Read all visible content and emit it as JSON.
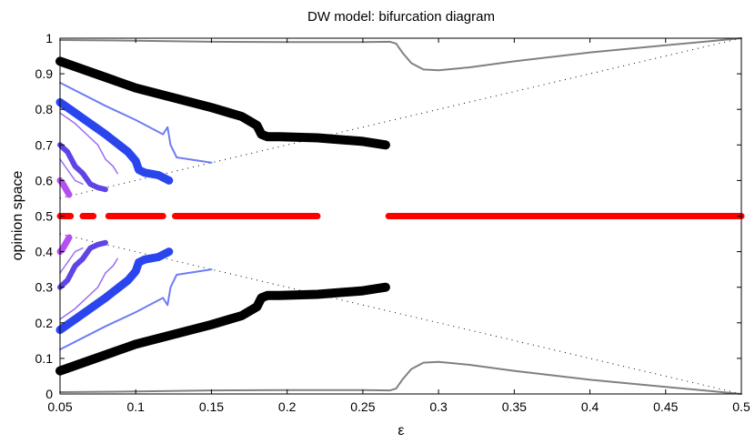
{
  "chart_data": {
    "type": "line",
    "title": "DW model: bifurcation diagram",
    "xlabel": "ε",
    "ylabel": "opinion space",
    "xlim": [
      0.05,
      0.5
    ],
    "ylim": [
      0,
      1
    ],
    "x_ticks": [
      "0.05",
      "0.1",
      "0.15",
      "0.2",
      "0.25",
      "0.3",
      "0.35",
      "0.4",
      "0.45",
      "0.5"
    ],
    "y_ticks": [
      "0",
      "0.1",
      "0.2",
      "0.3",
      "0.4",
      "0.5",
      "0.6",
      "0.7",
      "0.8",
      "0.9",
      "1"
    ],
    "grid": false,
    "series": [
      {
        "name": "boundary-upper",
        "color": "#000000",
        "style": "dotted",
        "width": 1,
        "x": [
          0.05,
          0.5
        ],
        "y": [
          0.55,
          1.0
        ]
      },
      {
        "name": "boundary-lower",
        "color": "#000000",
        "style": "dotted",
        "width": 1,
        "x": [
          0.05,
          0.5
        ],
        "y": [
          0.45,
          0.0
        ]
      },
      {
        "name": "extreme-upper",
        "color": "#808080",
        "style": "solid",
        "width": 2,
        "x": [
          0.05,
          0.1,
          0.15,
          0.2,
          0.25,
          0.268,
          0.272,
          0.276,
          0.282,
          0.29,
          0.3,
          0.32,
          0.35,
          0.4,
          0.45,
          0.5
        ],
        "y": [
          0.995,
          0.993,
          0.99,
          0.989,
          0.989,
          0.99,
          0.985,
          0.96,
          0.93,
          0.912,
          0.91,
          0.918,
          0.935,
          0.96,
          0.98,
          1.0
        ]
      },
      {
        "name": "extreme-lower",
        "color": "#808080",
        "style": "solid",
        "width": 2,
        "x": [
          0.05,
          0.1,
          0.15,
          0.2,
          0.25,
          0.268,
          0.272,
          0.276,
          0.282,
          0.29,
          0.3,
          0.32,
          0.35,
          0.4,
          0.45,
          0.5
        ],
        "y": [
          0.005,
          0.007,
          0.01,
          0.011,
          0.011,
          0.01,
          0.015,
          0.04,
          0.07,
          0.088,
          0.09,
          0.082,
          0.065,
          0.04,
          0.02,
          0.0
        ]
      },
      {
        "name": "center",
        "color": "#ff0000",
        "style": "dashed-gap",
        "width": 7,
        "segments": [
          [
            0.05,
            0.057
          ],
          [
            0.065,
            0.072
          ],
          [
            0.082,
            0.118
          ],
          [
            0.126,
            0.22
          ],
          [
            0.267,
            0.5
          ]
        ],
        "value": 0.5
      },
      {
        "name": "major-upper",
        "color": "#000000",
        "style": "solid",
        "width": 10,
        "x": [
          0.05,
          0.1,
          0.15,
          0.17,
          0.18,
          0.183,
          0.187,
          0.195,
          0.22,
          0.25,
          0.265
        ],
        "y": [
          0.935,
          0.86,
          0.805,
          0.78,
          0.755,
          0.73,
          0.723,
          0.723,
          0.72,
          0.71,
          0.7
        ]
      },
      {
        "name": "major-lower",
        "color": "#000000",
        "style": "solid",
        "width": 10,
        "x": [
          0.05,
          0.1,
          0.15,
          0.17,
          0.18,
          0.183,
          0.187,
          0.195,
          0.22,
          0.25,
          0.265
        ],
        "y": [
          0.065,
          0.14,
          0.195,
          0.22,
          0.245,
          0.27,
          0.277,
          0.277,
          0.28,
          0.29,
          0.3
        ]
      },
      {
        "name": "blue-thick-upper",
        "color": "#2a45ee",
        "style": "solid",
        "width": 9,
        "x": [
          0.05,
          0.06,
          0.08,
          0.095,
          0.1,
          0.102,
          0.106,
          0.115,
          0.122
        ],
        "y": [
          0.82,
          0.79,
          0.73,
          0.68,
          0.655,
          0.63,
          0.622,
          0.615,
          0.6
        ]
      },
      {
        "name": "blue-thick-lower",
        "color": "#2a45ee",
        "style": "solid",
        "width": 9,
        "x": [
          0.05,
          0.06,
          0.08,
          0.095,
          0.1,
          0.102,
          0.106,
          0.115,
          0.122
        ],
        "y": [
          0.18,
          0.21,
          0.27,
          0.32,
          0.345,
          0.37,
          0.378,
          0.385,
          0.4
        ]
      },
      {
        "name": "blue-thin-upper",
        "color": "#6d7df4",
        "style": "solid",
        "width": 2,
        "x": [
          0.05,
          0.08,
          0.1,
          0.118,
          0.121,
          0.123,
          0.127,
          0.15
        ],
        "y": [
          0.875,
          0.81,
          0.77,
          0.73,
          0.75,
          0.7,
          0.665,
          0.65
        ]
      },
      {
        "name": "blue-thin-lower",
        "color": "#6d7df4",
        "style": "solid",
        "width": 2,
        "x": [
          0.05,
          0.08,
          0.1,
          0.118,
          0.121,
          0.123,
          0.127,
          0.15
        ],
        "y": [
          0.125,
          0.19,
          0.23,
          0.27,
          0.25,
          0.3,
          0.335,
          0.35
        ]
      },
      {
        "name": "indigo-upper",
        "color": "#5f45e5",
        "style": "solid",
        "width": 6,
        "x": [
          0.05,
          0.055,
          0.06,
          0.065,
          0.07,
          0.075,
          0.08
        ],
        "y": [
          0.7,
          0.68,
          0.64,
          0.62,
          0.59,
          0.58,
          0.575
        ]
      },
      {
        "name": "indigo-lower",
        "color": "#5f45e5",
        "style": "solid",
        "width": 6,
        "x": [
          0.05,
          0.055,
          0.06,
          0.065,
          0.07,
          0.075,
          0.08
        ],
        "y": [
          0.3,
          0.32,
          0.36,
          0.38,
          0.41,
          0.42,
          0.425
        ]
      },
      {
        "name": "violet-thin-upper",
        "color": "#9a6cf0",
        "style": "solid",
        "width": 1.5,
        "x": [
          0.05,
          0.06,
          0.07,
          0.075,
          0.08,
          0.085,
          0.088
        ],
        "y": [
          0.79,
          0.76,
          0.72,
          0.7,
          0.66,
          0.64,
          0.62
        ]
      },
      {
        "name": "violet-thin-lower",
        "color": "#9a6cf0",
        "style": "solid",
        "width": 1.5,
        "x": [
          0.05,
          0.06,
          0.07,
          0.075,
          0.08,
          0.085,
          0.088
        ],
        "y": [
          0.21,
          0.24,
          0.28,
          0.3,
          0.34,
          0.36,
          0.38
        ]
      },
      {
        "name": "magenta-upper",
        "color": "#b44ff2",
        "style": "solid",
        "width": 7,
        "x": [
          0.05,
          0.052,
          0.054,
          0.056
        ],
        "y": [
          0.6,
          0.59,
          0.575,
          0.56
        ]
      },
      {
        "name": "magenta-lower",
        "color": "#b44ff2",
        "style": "solid",
        "width": 7,
        "x": [
          0.05,
          0.052,
          0.054,
          0.056
        ],
        "y": [
          0.4,
          0.41,
          0.425,
          0.44
        ]
      },
      {
        "name": "purple-thin-upper",
        "color": "#a070ee",
        "style": "solid",
        "width": 1.5,
        "x": [
          0.05,
          0.055,
          0.06,
          0.065
        ],
        "y": [
          0.66,
          0.63,
          0.6,
          0.59
        ]
      },
      {
        "name": "purple-thin-lower",
        "color": "#a070ee",
        "style": "solid",
        "width": 1.5,
        "x": [
          0.05,
          0.055,
          0.06,
          0.065
        ],
        "y": [
          0.34,
          0.37,
          0.4,
          0.41
        ]
      }
    ]
  }
}
